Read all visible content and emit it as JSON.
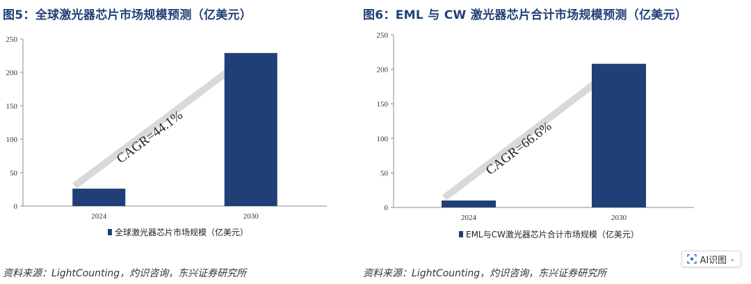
{
  "figures": [
    {
      "title": "图5：全球激光器芯片市场规模预测（亿美元）",
      "source": "资料来源：LightCounting，灼识咨询，东兴证券研究所"
    },
    {
      "title": "图6：EML 与 CW 激光器芯片合计市场规模预测（亿美元）",
      "source": "资料来源：LightCounting，灼识咨询，东兴证券研究所"
    }
  ],
  "ai_button": {
    "label": "AI识图",
    "icon": "ai-scan-icon",
    "chevron": "⌄"
  },
  "chart_data": [
    {
      "type": "bar",
      "title": "图5：全球激光器芯片市场规模预测（亿美元）",
      "categories": [
        "2024",
        "2030"
      ],
      "series": [
        {
          "name": "全球激光器芯片市场规模（亿美元）",
          "values": [
            26,
            229
          ]
        }
      ],
      "ylim": [
        0,
        250
      ],
      "yticks": [
        0,
        50,
        100,
        150,
        200,
        250
      ],
      "annotation": "CAGR=44.1%",
      "bar_color": "#1f3f76",
      "arrow_color": "#d9d9d9",
      "legend_position": "bottom",
      "grid": false
    },
    {
      "type": "bar",
      "title": "图6：EML 与 CW 激光器芯片合计市场规模预测（亿美元）",
      "categories": [
        "2024",
        "2030"
      ],
      "series": [
        {
          "name": "EML与CW激光器芯片合计市场规模（亿美元）",
          "values": [
            10,
            208
          ]
        }
      ],
      "ylim": [
        0,
        250
      ],
      "yticks": [
        0,
        50,
        100,
        150,
        200,
        250
      ],
      "annotation": "CAGR=66.6%",
      "bar_color": "#1f3f76",
      "arrow_color": "#d9d9d9",
      "legend_position": "bottom",
      "grid": false
    }
  ]
}
